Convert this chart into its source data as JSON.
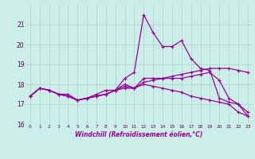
{
  "xlabel": "Windchill (Refroidissement éolien,°C)",
  "background_color": "#cceee8",
  "grid_color": "#aad8d0",
  "line_color": "#990099",
  "hours": [
    0,
    1,
    2,
    3,
    4,
    5,
    6,
    7,
    8,
    9,
    10,
    11,
    12,
    13,
    14,
    15,
    16,
    17,
    18,
    19,
    20,
    21,
    22,
    23
  ],
  "line1": [
    17.4,
    17.8,
    17.7,
    17.5,
    17.4,
    17.2,
    17.3,
    17.4,
    17.5,
    17.7,
    18.3,
    18.6,
    21.5,
    20.6,
    19.9,
    19.9,
    20.2,
    19.3,
    18.8,
    18.7,
    17.3,
    17.1,
    17.0,
    16.4
  ],
  "line2": [
    17.4,
    17.8,
    17.7,
    17.5,
    17.5,
    17.2,
    17.3,
    17.5,
    17.7,
    17.7,
    18.0,
    17.8,
    18.3,
    18.3,
    18.3,
    18.3,
    18.3,
    18.4,
    18.5,
    18.6,
    18.2,
    17.3,
    17.0,
    16.6
  ],
  "line3": [
    17.4,
    17.8,
    17.7,
    17.5,
    17.4,
    17.2,
    17.3,
    17.4,
    17.5,
    17.7,
    17.9,
    17.8,
    18.1,
    18.2,
    18.3,
    18.4,
    18.5,
    18.6,
    18.7,
    18.8,
    18.8,
    18.8,
    18.7,
    18.6
  ],
  "line4": [
    17.4,
    17.8,
    17.7,
    17.5,
    17.4,
    17.2,
    17.3,
    17.4,
    17.5,
    17.7,
    17.8,
    17.8,
    18.0,
    17.9,
    17.8,
    17.7,
    17.6,
    17.4,
    17.3,
    17.2,
    17.1,
    17.0,
    16.6,
    16.4
  ],
  "ylim": [
    16.0,
    22.0
  ],
  "yticks": [
    16,
    17,
    18,
    19,
    20,
    21
  ],
  "xlim": [
    -0.5,
    23.5
  ]
}
